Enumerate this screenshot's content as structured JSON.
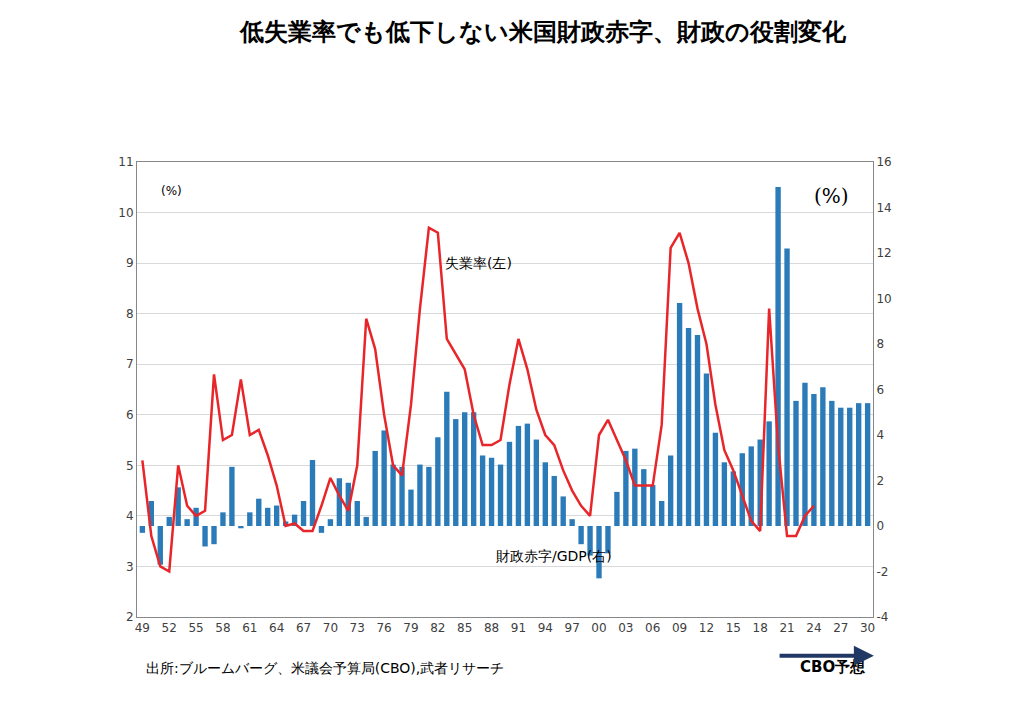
{
  "chart_data": {
    "type": "bar",
    "title": "低失業率でも低下しない米国財政赤字、財政の役割変化",
    "source": "出所:ブルームバーグ、米議会予算局(CBO),武者リサーチ",
    "forecast_label": "CBO予想",
    "y_label": "(%)",
    "y2_label": "(%)",
    "categories": [
      "49",
      null,
      null,
      "52",
      null,
      null,
      "55",
      null,
      null,
      "58",
      null,
      null,
      "61",
      null,
      null,
      "64",
      null,
      null,
      "67",
      null,
      null,
      "70",
      null,
      null,
      "73",
      null,
      null,
      "76",
      null,
      null,
      "79",
      null,
      null,
      "82",
      null,
      null,
      "85",
      null,
      null,
      "88",
      null,
      null,
      "91",
      null,
      null,
      "94",
      null,
      null,
      "97",
      null,
      null,
      "00",
      null,
      null,
      "03",
      null,
      null,
      "06",
      null,
      null,
      "09",
      null,
      null,
      "12",
      null,
      null,
      "15",
      null,
      null,
      "18",
      null,
      null,
      "21",
      null,
      null,
      "24",
      null,
      null,
      "27",
      null,
      null,
      "30"
    ],
    "series": [
      {
        "name": "財政赤字/GDP(右)",
        "type": "bar",
        "axis": "y2",
        "color": "#2b7bb9",
        "values": [
          -0.3,
          1.1,
          -1.7,
          0.4,
          1.7,
          0.3,
          0.8,
          -0.9,
          -0.8,
          0.6,
          2.6,
          -0.1,
          0.6,
          1.2,
          0.8,
          0.9,
          0.2,
          0.5,
          1.1,
          2.9,
          -0.3,
          0.3,
          2.1,
          1.9,
          1.1,
          0.4,
          3.3,
          4.2,
          2.7,
          2.6,
          1.6,
          2.7,
          2.6,
          3.9,
          5.9,
          4.7,
          5.0,
          5.0,
          3.1,
          3.0,
          2.7,
          3.7,
          4.4,
          4.5,
          3.8,
          2.8,
          2.2,
          1.3,
          0.3,
          -0.8,
          -1.3,
          -2.3,
          -1.2,
          1.5,
          3.3,
          3.4,
          2.5,
          1.8,
          1.1,
          3.1,
          9.8,
          8.7,
          8.4,
          6.7,
          4.1,
          2.8,
          2.4,
          3.2,
          3.5,
          3.8,
          4.6,
          14.9,
          12.2,
          5.5,
          6.3,
          5.8,
          6.1,
          5.5,
          5.2,
          5.2,
          5.4,
          5.4
        ]
      },
      {
        "name": "失業率(左)",
        "type": "line",
        "axis": "y",
        "color": "#e8262a",
        "values": [
          5.1,
          3.6,
          3.0,
          2.9,
          5.0,
          4.2,
          4.0,
          4.1,
          6.8,
          5.5,
          5.6,
          6.7,
          5.6,
          5.7,
          5.2,
          4.6,
          3.8,
          3.85,
          3.7,
          3.7,
          4.2,
          4.75,
          4.4,
          4.1,
          5.0,
          7.9,
          7.3,
          6.0,
          5.0,
          4.8,
          6.2,
          8.1,
          9.7,
          9.6,
          7.5,
          7.2,
          6.9,
          6.0,
          5.4,
          5.4,
          5.5,
          6.6,
          7.5,
          6.9,
          6.1,
          5.6,
          5.4,
          4.9,
          4.5,
          4.2,
          4.0,
          5.6,
          5.9,
          5.5,
          5.1,
          4.6,
          4.6,
          4.6,
          5.8,
          9.3,
          9.6,
          9.0,
          8.1,
          7.4,
          6.2,
          5.3,
          4.9,
          4.4,
          3.9,
          3.7,
          8.1,
          5.4,
          3.6,
          3.6,
          4.0,
          4.2,
          null,
          null,
          null,
          null,
          null,
          null
        ]
      }
    ],
    "ylim": [
      2,
      11
    ],
    "yticks": [
      2,
      3,
      4,
      5,
      6,
      7,
      8,
      9,
      10,
      11
    ],
    "y2lim": [
      -4,
      16
    ],
    "y2ticks": [
      -4,
      -2,
      0,
      2,
      4,
      6,
      8,
      10,
      12,
      14,
      16
    ],
    "grid": true
  }
}
